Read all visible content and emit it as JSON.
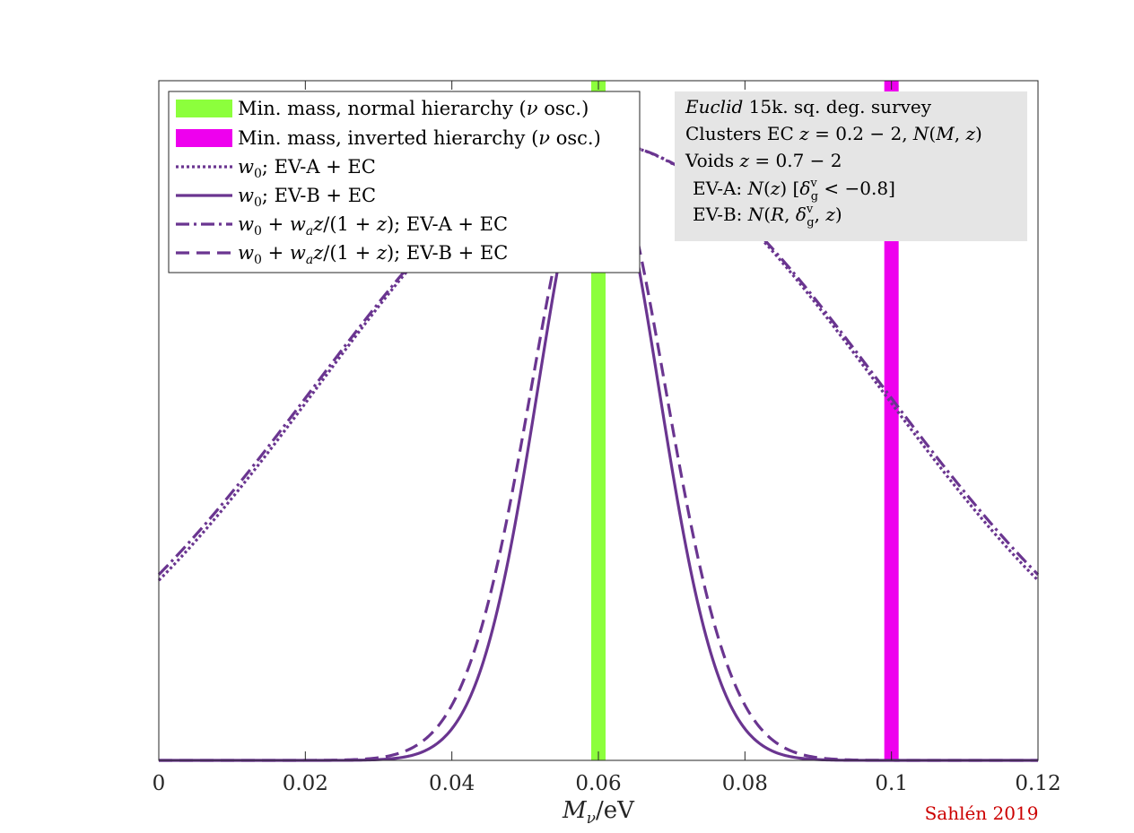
{
  "chart_data": {
    "type": "line",
    "title": "",
    "xlabel": "Mν/eV",
    "ylabel": "",
    "xlim": [
      0,
      0.12
    ],
    "ylim": [
      0,
      1.1
    ],
    "grid": false,
    "legend_position": "top-left",
    "x_ticks": [
      0,
      0.02,
      0.04,
      0.06,
      0.08,
      0.1,
      0.12
    ],
    "x_tick_labels": [
      "0",
      "0.02",
      "0.04",
      "0.06",
      "0.08",
      "0.1",
      "0.12"
    ],
    "colors": {
      "purple": "#6a3590",
      "green": "#8cff3c",
      "magenta": "#ee00ee",
      "credit_red": "#cc0000",
      "annotation_bg": "#e5e5e5"
    },
    "vertical_bands": [
      {
        "name": "Min. mass, normal hierarchy (ν osc.)",
        "x": 0.06,
        "color": "#8cff3c"
      },
      {
        "name": "Min. mass, inverted hierarchy (ν osc.)",
        "x": 0.1,
        "color": "#ee00ee"
      }
    ],
    "series": [
      {
        "name": "w0; EV-A + EC",
        "style": "dotted",
        "color": "#6a3590",
        "peak_x": 0.06,
        "sigma": 0.0382
      },
      {
        "name": "w0; EV-B + EC",
        "style": "solid",
        "color": "#6a3590",
        "peak_x": 0.06,
        "sigma": 0.0082
      },
      {
        "name": "w0 + wa z/(1 + z); EV-A + EC",
        "style": "dashdot",
        "color": "#6a3590",
        "peak_x": 0.06,
        "sigma": 0.0387
      },
      {
        "name": "w0 + wa z/(1 + z); EV-B + EC",
        "style": "dashed",
        "color": "#6a3590",
        "peak_x": 0.06,
        "sigma": 0.0091
      }
    ],
    "legend_entries": [
      "Min. mass, normal hierarchy (ν osc.)",
      "Min. mass, inverted hierarchy (ν osc.)",
      "w0; EV-A + EC",
      "w0; EV-B + EC",
      "w0 + wa z/(1 + z); EV-A + EC",
      "w0 + wa z/(1 + z); EV-B + EC"
    ],
    "annotation_lines": [
      "Euclid 15k. sq. deg. survey",
      "Clusters EC z = 0.2 − 2, N(M, z)",
      "Voids z = 0.7 − 2",
      " EV-A: N(z) [δgv < −0.8]",
      " EV-B: N(R, δgv, z)"
    ],
    "credit": "Sahlén 2019"
  }
}
